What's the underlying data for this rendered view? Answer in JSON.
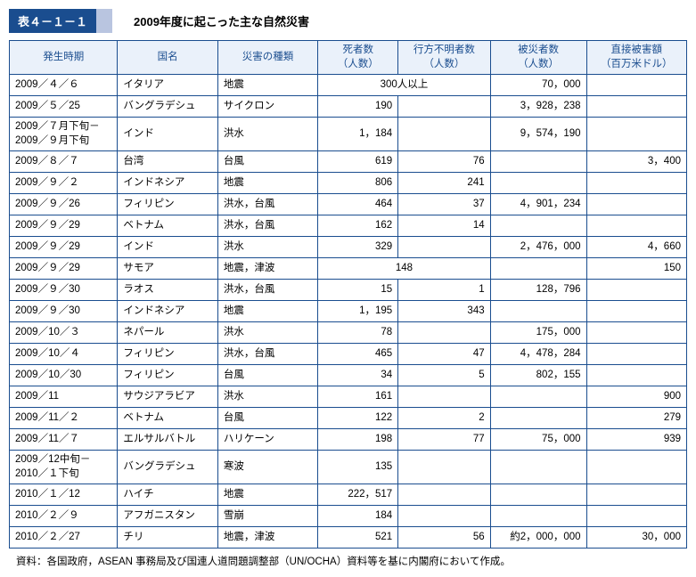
{
  "tableLabel": "表４－１－１",
  "tableTitle": "2009年度に起こった主な自然災害",
  "headers": {
    "period": "発生時期",
    "country": "国名",
    "type": "災害の種類",
    "deaths": "死者数\n（人数）",
    "missing": "行方不明者数\n（人数）",
    "affected": "被災者数\n（人数）",
    "damage": "直接被害額\n（百万米ドル）"
  },
  "rows": [
    {
      "period": "2009／４／６",
      "country": "イタリア",
      "type": "地震",
      "merged_dm": "300人以上",
      "affected": "70，000",
      "damage": ""
    },
    {
      "period": "2009／５／25",
      "country": "バングラデシュ",
      "type": "サイクロン",
      "deaths": "190",
      "missing": "",
      "affected": "3，928，238",
      "damage": ""
    },
    {
      "period": "2009／７月下旬－\n2009／９月下旬",
      "country": "インド",
      "type": "洪水",
      "deaths": "1，184",
      "missing": "",
      "affected": "9，574，190",
      "damage": ""
    },
    {
      "period": "2009／８／７",
      "country": "台湾",
      "type": "台風",
      "deaths": "619",
      "missing": "76",
      "affected": "",
      "damage": "3，400"
    },
    {
      "period": "2009／９／２",
      "country": "インドネシア",
      "type": "地震",
      "deaths": "806",
      "missing": "241",
      "affected": "",
      "damage": ""
    },
    {
      "period": "2009／９／26",
      "country": "フィリピン",
      "type": "洪水，台風",
      "deaths": "464",
      "missing": "37",
      "affected": "4，901，234",
      "damage": ""
    },
    {
      "period": "2009／９／29",
      "country": "ベトナム",
      "type": "洪水，台風",
      "deaths": "162",
      "missing": "14",
      "affected": "",
      "damage": ""
    },
    {
      "period": "2009／９／29",
      "country": "インド",
      "type": "洪水",
      "deaths": "329",
      "missing": "",
      "affected": "2，476，000",
      "damage": "4，660"
    },
    {
      "period": "2009／９／29",
      "country": "サモア",
      "type": "地震，津波",
      "merged_dm": "148",
      "affected": "",
      "damage": "150"
    },
    {
      "period": "2009／９／30",
      "country": "ラオス",
      "type": "洪水，台風",
      "deaths": "15",
      "missing": "1",
      "affected": "128，796",
      "damage": ""
    },
    {
      "period": "2009／９／30",
      "country": "インドネシア",
      "type": "地震",
      "deaths": "1，195",
      "missing": "343",
      "affected": "",
      "damage": ""
    },
    {
      "period": "2009／10／３",
      "country": "ネパール",
      "type": "洪水",
      "deaths": "78",
      "missing": "",
      "affected": "175，000",
      "damage": ""
    },
    {
      "period": "2009／10／４",
      "country": "フィリピン",
      "type": "洪水，台風",
      "deaths": "465",
      "missing": "47",
      "affected": "4，478，284",
      "damage": ""
    },
    {
      "period": "2009／10／30",
      "country": "フィリピン",
      "type": "台風",
      "deaths": "34",
      "missing": "5",
      "affected": "802，155",
      "damage": ""
    },
    {
      "period": "2009／11",
      "country": "サウジアラビア",
      "type": "洪水",
      "deaths": "161",
      "missing": "",
      "affected": "",
      "damage": "900"
    },
    {
      "period": "2009／11／２",
      "country": "ベトナム",
      "type": "台風",
      "deaths": "122",
      "missing": "2",
      "affected": "",
      "damage": "279"
    },
    {
      "period": "2009／11／７",
      "country": "エルサルバトル",
      "type": "ハリケーン",
      "deaths": "198",
      "missing": "77",
      "affected": "75，000",
      "damage": "939"
    },
    {
      "period": "2009／12中旬－\n2010／１下旬",
      "country": "バングラデシュ",
      "type": "寒波",
      "deaths": "135",
      "missing": "",
      "affected": "",
      "damage": ""
    },
    {
      "period": "2010／１／12",
      "country": "ハイチ",
      "type": "地震",
      "deaths": "222，517",
      "missing": "",
      "affected": "",
      "damage": ""
    },
    {
      "period": "2010／２／９",
      "country": "アフガニスタン",
      "type": "雪崩",
      "deaths": "184",
      "missing": "",
      "affected": "",
      "damage": ""
    },
    {
      "period": "2010／２／27",
      "country": "チリ",
      "type": "地震，津波",
      "deaths": "521",
      "missing": "56",
      "affected": "約2，000，000",
      "damage": "30，000"
    }
  ],
  "footnote": "資料：各国政府，ASEAN 事務局及び国連人道問題調整部（UN/OCHA）資料等を基に内閣府において作成。"
}
